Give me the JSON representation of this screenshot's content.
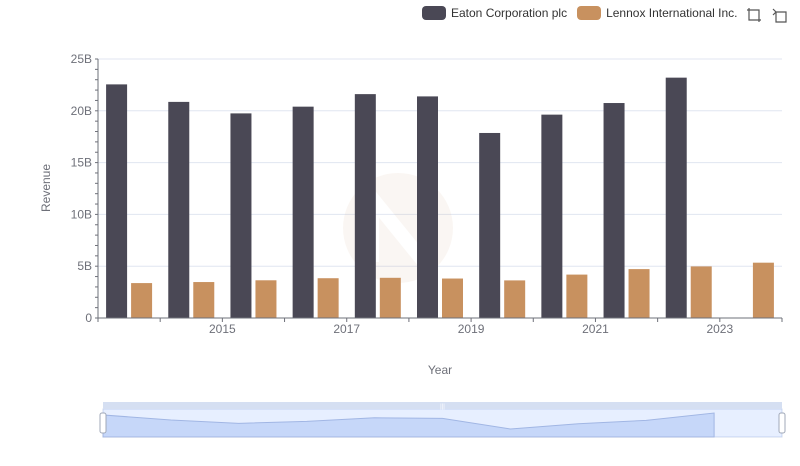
{
  "chart_data": {
    "type": "bar",
    "x": [
      2014,
      2015,
      2016,
      2017,
      2018,
      2019,
      2020,
      2021,
      2022,
      2023,
      2024
    ],
    "xticks": [
      "2015",
      "2017",
      "2019",
      "2021",
      "2023"
    ],
    "series": [
      {
        "name": "Eaton Corporation plc",
        "color": "#4a4855",
        "values": [
          22.55,
          20.86,
          19.75,
          20.4,
          21.61,
          21.39,
          17.86,
          19.63,
          20.75,
          23.2,
          null
        ]
      },
      {
        "name": "Lennox International Inc.",
        "color": "#c8915f",
        "values": [
          3.37,
          3.47,
          3.64,
          3.84,
          3.88,
          3.81,
          3.63,
          4.19,
          4.72,
          4.98,
          5.34
        ]
      }
    ],
    "yticks": [
      "0",
      "5B",
      "10B",
      "15B",
      "20B",
      "25B"
    ],
    "ylim": [
      0,
      25
    ],
    "xlabel": "Year",
    "ylabel": "Revenue",
    "grid": true,
    "legend_position": "top-right"
  },
  "toolbox": {
    "zoom_icon": "zoom-crosshair-icon",
    "restore_icon": "restore-icon"
  },
  "datazoom": {
    "start_fraction": 0.0,
    "end_fraction": 1.0,
    "handle_label": "|||"
  }
}
